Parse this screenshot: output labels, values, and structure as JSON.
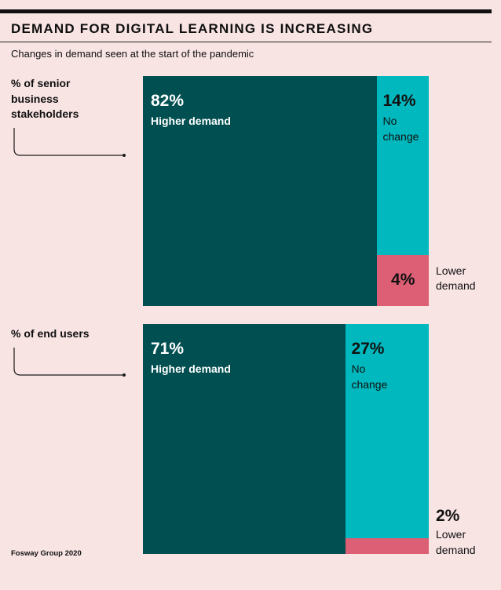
{
  "title": "DEMAND FOR DIGITAL LEARNING IS INCREASING",
  "subtitle": "Changes in demand seen at the start of the pandemic",
  "source": "Fosway Group 2020",
  "colors": {
    "background": "#f9e4e4",
    "higher": "#024f51",
    "no_change": "#00b8bd",
    "lower": "#dc5f75"
  },
  "chart_data": [
    {
      "type": "treemap",
      "group_label": "% of senior business stakeholders",
      "segments": [
        {
          "value": 82,
          "display": "82%",
          "label": "Higher demand"
        },
        {
          "value": 14,
          "display": "14%",
          "label": "No change"
        },
        {
          "value": 4,
          "display": "4%",
          "label": "Lower demand"
        }
      ]
    },
    {
      "type": "treemap",
      "group_label": "% of end users",
      "segments": [
        {
          "value": 71,
          "display": "71%",
          "label": "Higher demand"
        },
        {
          "value": 27,
          "display": "27%",
          "label": "No change"
        },
        {
          "value": 2,
          "display": "2%",
          "label": "Lower demand"
        }
      ]
    }
  ]
}
